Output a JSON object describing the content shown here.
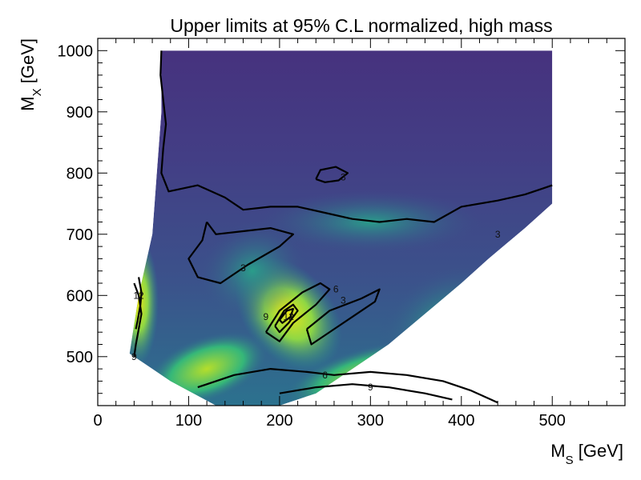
{
  "chart_data": {
    "type": "heatmap",
    "title": "Upper limits at 95% C.L normalized, high mass",
    "xlabel": {
      "main": "M",
      "sub": "S",
      "unit": " [GeV]"
    },
    "ylabel": {
      "main": "M",
      "sub": "X",
      "unit": " [GeV]"
    },
    "xlim": [
      0,
      580
    ],
    "ylim": [
      420,
      1020
    ],
    "x_ticks": [
      0,
      100,
      200,
      300,
      400,
      500
    ],
    "y_ticks": [
      500,
      600,
      700,
      800,
      900,
      1000
    ],
    "colormap": "viridis",
    "contour_levels": [
      3,
      6,
      9,
      12
    ],
    "contours": [
      {
        "level": "3",
        "label_at": [
          440,
          700
        ],
        "points": [
          [
            70,
            1000
          ],
          [
            69,
            960
          ],
          [
            72,
            920
          ],
          [
            75,
            880
          ],
          [
            72,
            840
          ],
          [
            70,
            800
          ],
          [
            78,
            770
          ],
          [
            110,
            780
          ],
          [
            140,
            760
          ],
          [
            160,
            740
          ],
          [
            190,
            745
          ],
          [
            220,
            745
          ],
          [
            250,
            735
          ],
          [
            280,
            725
          ],
          [
            310,
            720
          ],
          [
            340,
            725
          ],
          [
            370,
            720
          ],
          [
            400,
            745
          ],
          [
            440,
            755
          ],
          [
            470,
            765
          ],
          [
            490,
            775
          ],
          [
            500,
            780
          ]
        ]
      },
      {
        "level": "3",
        "label_at": [
          270,
          793
        ],
        "points": [
          [
            240,
            790
          ],
          [
            245,
            805
          ],
          [
            262,
            810
          ],
          [
            275,
            800
          ],
          [
            265,
            788
          ],
          [
            250,
            785
          ],
          [
            240,
            790
          ]
        ]
      },
      {
        "level": "3",
        "label_at": [
          160,
          645
        ],
        "points": [
          [
            120,
            720
          ],
          [
            115,
            690
          ],
          [
            100,
            660
          ],
          [
            110,
            630
          ],
          [
            135,
            620
          ],
          [
            165,
            650
          ],
          [
            200,
            680
          ],
          [
            215,
            700
          ],
          [
            190,
            710
          ],
          [
            160,
            705
          ],
          [
            130,
            700
          ],
          [
            120,
            720
          ]
        ]
      },
      {
        "level": "3",
        "label_at": [
          270,
          592
        ],
        "points": [
          [
            230,
            545
          ],
          [
            255,
            575
          ],
          [
            290,
            595
          ],
          [
            310,
            610
          ],
          [
            305,
            590
          ],
          [
            285,
            570
          ],
          [
            260,
            545
          ],
          [
            235,
            520
          ],
          [
            230,
            545
          ]
        ]
      },
      {
        "level": "6",
        "label_at": [
          262,
          610
        ],
        "points": [
          [
            185,
            540
          ],
          [
            200,
            575
          ],
          [
            225,
            605
          ],
          [
            245,
            620
          ],
          [
            255,
            610
          ],
          [
            240,
            585
          ],
          [
            215,
            555
          ],
          [
            200,
            525
          ],
          [
            185,
            540
          ]
        ]
      },
      {
        "level": "9",
        "label_at": [
          185,
          565
        ],
        "points": [
          [
            195,
            550
          ],
          [
            205,
            575
          ],
          [
            215,
            585
          ],
          [
            220,
            575
          ],
          [
            210,
            555
          ],
          [
            200,
            540
          ],
          [
            195,
            550
          ]
        ]
      },
      {
        "level": "12",
        "label_at": [
          210,
          565
        ],
        "points": [
          [
            200,
            560
          ],
          [
            208,
            575
          ],
          [
            215,
            578
          ],
          [
            212,
            565
          ],
          [
            203,
            555
          ],
          [
            200,
            560
          ]
        ]
      },
      {
        "level": "9",
        "label_at": [
          40,
          500
        ],
        "points": [
          [
            40,
            620
          ],
          [
            45,
            600
          ],
          [
            48,
            570
          ],
          [
            45,
            545
          ],
          [
            42,
            520
          ],
          [
            40,
            500
          ]
        ]
      },
      {
        "level": "12",
        "label_at": [
          45,
          600
        ],
        "points": [
          [
            45,
            630
          ],
          [
            48,
            605
          ],
          [
            47,
            585
          ],
          [
            44,
            560
          ],
          [
            42,
            545
          ]
        ]
      },
      {
        "level": "6",
        "label_at": [
          250,
          470
        ],
        "points": [
          [
            110,
            450
          ],
          [
            150,
            470
          ],
          [
            190,
            480
          ],
          [
            230,
            475
          ],
          [
            260,
            470
          ],
          [
            300,
            475
          ],
          [
            340,
            470
          ],
          [
            380,
            460
          ],
          [
            410,
            445
          ],
          [
            440,
            425
          ]
        ]
      },
      {
        "level": "9",
        "label_at": [
          300,
          450
        ],
        "points": [
          [
            200,
            440
          ],
          [
            240,
            450
          ],
          [
            280,
            455
          ],
          [
            320,
            450
          ],
          [
            360,
            440
          ],
          [
            390,
            430
          ]
        ]
      }
    ]
  }
}
